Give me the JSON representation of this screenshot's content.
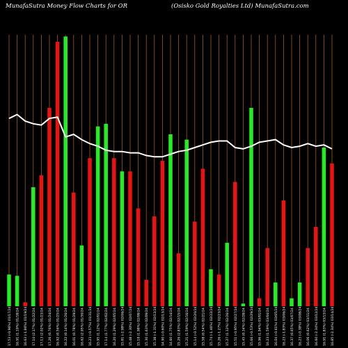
{
  "header": {
    "left": "MunafaSutra  Money Flow  Charts for OR",
    "right": "(Osisko  Gold Royalties Ltd) MunafaSutra.com"
  },
  "colors": {
    "background": "#000000",
    "up_bar": "#22ee22",
    "down_bar": "#ee1111",
    "grid_line": "#a55a10",
    "flow_line": "#ffffff",
    "tick_label": "#ffffff"
  },
  "chart_data": {
    "type": "bar",
    "title": "",
    "xlabel": "",
    "ylabel": "",
    "ylim": [
      0,
      1
    ],
    "grid": true,
    "categories": [
      "17.53 (-0.96%) 01/17/24",
      "16.91 (1.19%) 01/18/24",
      "16.63 (-1.86%) 01/19/24",
      "17.10 (2.17%) 01/22/24",
      "17.13 (2.02%) 01/23/24",
      "17.26 (0.76%) 01/24/24",
      "16.92 (0.56%) 01/25/24",
      "16.22 (0.14%) 01/26/24",
      "16.01 (0.78%) 01/29/24",
      "16.62 (2.95%) 01/30/24",
      "16.23 (-0.57%) 01/31/24",
      "15.95 (1.12%) 02/01/24",
      "17.14 (1.77%) 02/02/24",
      "16.20 (1.29%) 02/05/24",
      "15.81 (-2.98%) 02/06/24",
      "15.48 (-2.30%) 02/07/24",
      "15.18 (1.98%) 02/08/24",
      "15.30 (1.63%) 02/09/24",
      "15.38 (-1.31%) 02/12/24",
      "14.90 (-0.60%) 02/13/24",
      "14.60 (1.75%) 02/14/24",
      "15.26 (2.83%) 02/15/24",
      "15.21 (1.59%) 02/16/24",
      "15.14 (-0.52%) 02/20/24",
      "15.58 (0.54%) 02/21/24",
      "15.74 (-1.46%) 02/22/24",
      "15.26 (-1.27%) 02/23/24",
      "15.27 (1.12%) 02/26/24",
      "15.51 (-0.95%) 02/27/24",
      "15.45 (0.34%) 02/28/24",
      "15.66 (-0.53%) 02/29/24",
      "15.96 (1.94%) 03/01/24",
      "16.23 (1.59%) 03/04/24",
      "16.04 (-0.61%) 03/05/24",
      "16.23 (-1.83%) 03/06/24",
      "16.37 (0.65%) 03/07/24",
      "16.23 (-0.38%) 03/08/24",
      "16.06 (0.62%) 03/11/24",
      "16.60 (-2.34%) 03/12/24",
      "16.91 (1.83%) 03/13/24",
      "16.85 (-2.34%) 03/14/24"
    ],
    "bar_colors": [
      "green",
      "green",
      "red",
      "green",
      "red",
      "red",
      "red",
      "green",
      "red",
      "green",
      "red",
      "green",
      "green",
      "red",
      "green",
      "red",
      "red",
      "red",
      "red",
      "red",
      "green",
      "red",
      "green",
      "red",
      "red",
      "green",
      "red",
      "green",
      "red",
      "green",
      "green",
      "red",
      "red",
      "green",
      "red",
      "green",
      "green",
      "red",
      "red",
      "green",
      "red"
    ],
    "values": [
      0.12,
      0.115,
      0.015,
      0.45,
      0.495,
      0.75,
      1.0,
      1.02,
      0.43,
      0.23,
      0.56,
      0.68,
      0.69,
      0.56,
      0.51,
      0.51,
      0.37,
      0.1,
      0.34,
      0.55,
      0.65,
      0.2,
      0.63,
      0.32,
      0.52,
      0.14,
      0.12,
      0.24,
      0.47,
      0.01,
      0.75,
      0.03,
      0.22,
      0.09,
      0.4,
      0.03,
      0.09,
      0.22,
      0.3,
      0.6,
      0.54
    ],
    "line_values": [
      0.71,
      0.725,
      0.7,
      0.69,
      0.685,
      0.71,
      0.715,
      0.64,
      0.65,
      0.63,
      0.615,
      0.605,
      0.59,
      0.585,
      0.585,
      0.58,
      0.58,
      0.57,
      0.565,
      0.565,
      0.575,
      0.585,
      0.59,
      0.6,
      0.61,
      0.62,
      0.625,
      0.625,
      0.6,
      0.595,
      0.605,
      0.62,
      0.625,
      0.63,
      0.61,
      0.6,
      0.605,
      0.615,
      0.605,
      0.61,
      0.595
    ]
  }
}
